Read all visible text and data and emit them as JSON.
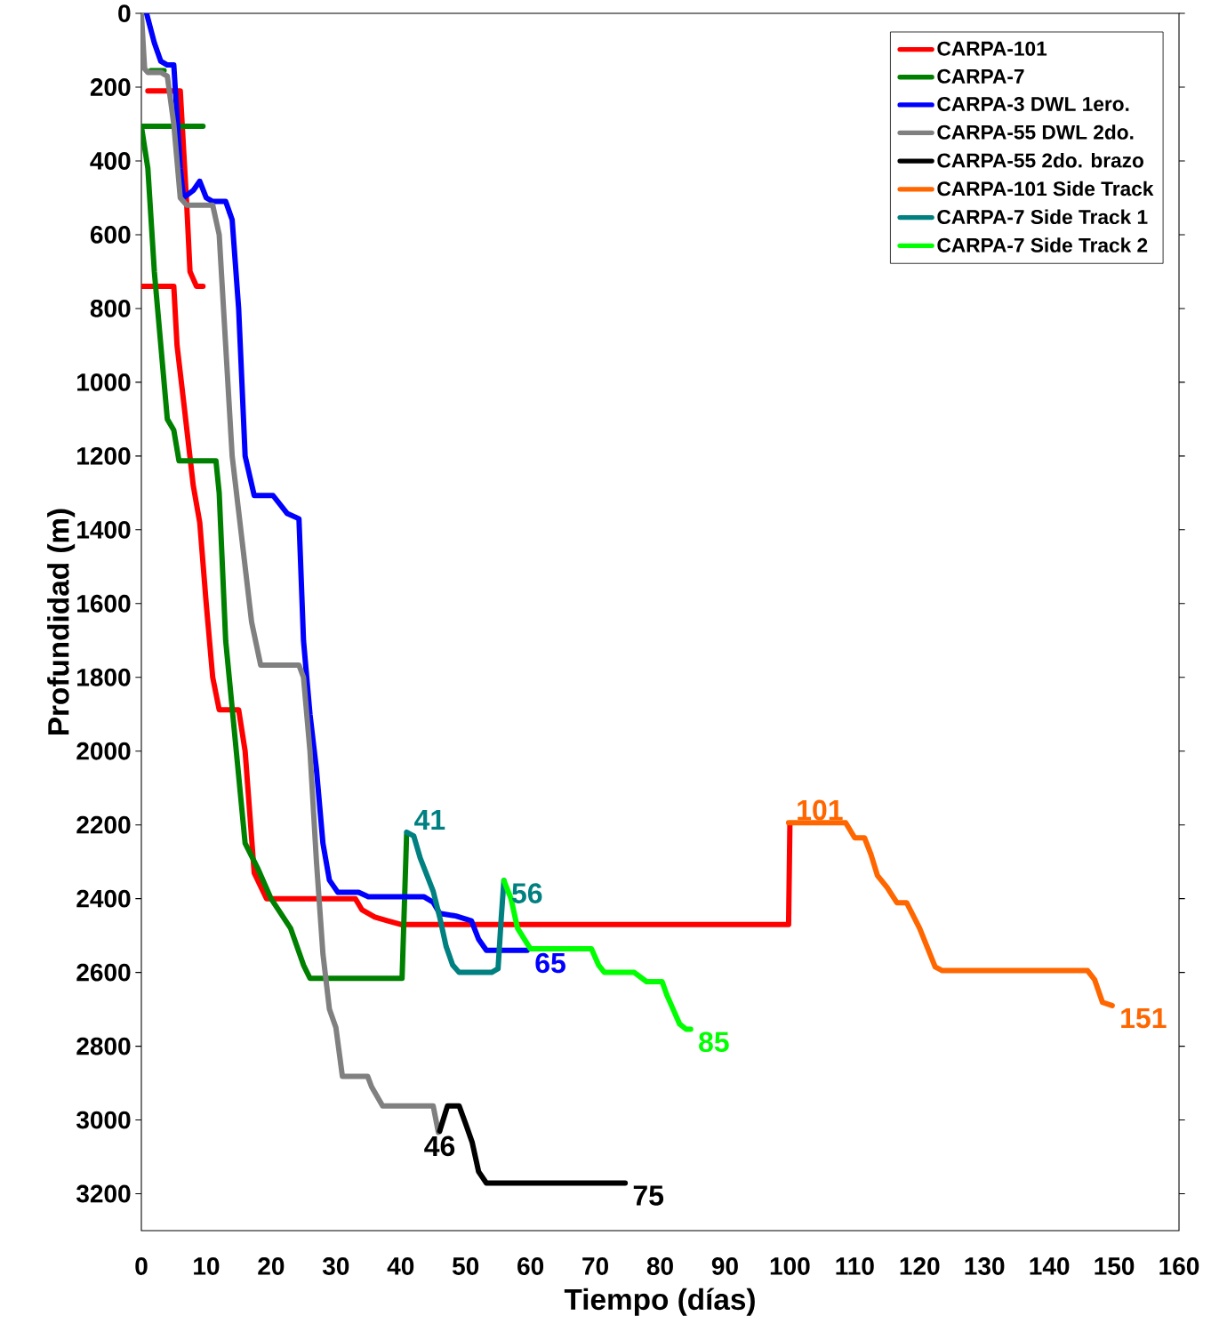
{
  "chart_data": {
    "type": "line",
    "xlabel": "Tiempo (días)",
    "ylabel": "Profundidad (m)",
    "xlim": [
      0,
      160
    ],
    "xticks": [
      0,
      10,
      20,
      30,
      40,
      50,
      60,
      70,
      80,
      90,
      100,
      110,
      120,
      130,
      140,
      150,
      160
    ],
    "ylim": [
      3300,
      0
    ],
    "yticks": [
      0,
      200,
      400,
      600,
      800,
      1000,
      1200,
      1400,
      1600,
      1800,
      2000,
      2200,
      2400,
      2600,
      2800,
      3000,
      3200
    ],
    "annotations": [
      {
        "text": "41",
        "x": 40.9,
        "y": 2220
      },
      {
        "text": "56",
        "x": 55.9,
        "y": 2351
      },
      {
        "text": "65",
        "x": 59.5,
        "y": 2540
      },
      {
        "text": "85",
        "x": 84.7,
        "y": 2754
      },
      {
        "text": "46",
        "x": 46,
        "y": 3030
      },
      {
        "text": "75",
        "x": 74.6,
        "y": 3171
      },
      {
        "text": "101",
        "x": 99.8,
        "y": 2194
      },
      {
        "text": "151",
        "x": 149.7,
        "y": 2690
      }
    ],
    "grid": false,
    "legend": "top right",
    "marker": "none",
    "line_style": "solid",
    "series": [
      {
        "name": "CARPA-101",
        "color": "#ff0000",
        "x": [
          1,
          6,
          7,
          7.5,
          8.5,
          9.5,
          null,
          0,
          5,
          5.5,
          6.5,
          8,
          9,
          10,
          11,
          12,
          15,
          16,
          17.4,
          19.3,
          33,
          34,
          36,
          38,
          40,
          99.8,
          100
        ],
        "values": [
          210,
          210,
          520,
          700,
          740,
          740,
          null,
          740,
          740,
          900,
          1050,
          1280,
          1380,
          1600,
          1800,
          1888,
          1888,
          2000,
          2330,
          2400,
          2400,
          2430,
          2450,
          2460,
          2470,
          2470,
          2200
        ]
      },
      {
        "name": "CARPA-7",
        "color": "#008000",
        "x": [
          1.5,
          3.5,
          null,
          0,
          9.5,
          null,
          0,
          1,
          2,
          3,
          4,
          5,
          5.8,
          11.5,
          12,
          13,
          16,
          18,
          20,
          23,
          25,
          26,
          40.2,
          40.9
        ],
        "values": [
          155,
          155,
          null,
          306,
          306,
          null,
          306,
          420,
          700,
          900,
          1100,
          1130,
          1213,
          1213,
          1300,
          1700,
          2250,
          2320,
          2400,
          2480,
          2580,
          2616,
          2616,
          2226
        ]
      },
      {
        "name": "CARPA-3 DWL 1ero.",
        "color": "#0000ff",
        "x": [
          0.8,
          2,
          3,
          4,
          5,
          6,
          6.5,
          8,
          9,
          10,
          11,
          13,
          14,
          15,
          15.5,
          16,
          17.4,
          20.3,
          22.5,
          24.3,
          25,
          26,
          27,
          28,
          29,
          30.3,
          33.5,
          35,
          43.6,
          45,
          46,
          48.5,
          50.9,
          52,
          53.2,
          59.5
        ],
        "values": [
          0,
          80,
          130,
          140,
          140,
          420,
          500,
          480,
          455,
          500,
          510,
          510,
          560,
          800,
          1000,
          1200,
          1307,
          1307,
          1356,
          1370,
          1700,
          1900,
          2050,
          2250,
          2350,
          2383,
          2383,
          2395,
          2395,
          2410,
          2440,
          2447,
          2460,
          2510,
          2540,
          2540
        ]
      },
      {
        "name": "CARPA-55 DWL 2do.",
        "color": "#808080",
        "x": [
          0,
          0.5,
          1,
          3,
          4,
          5,
          6,
          7,
          11,
          12,
          13,
          14,
          15,
          16,
          17,
          18.4,
          24.3,
          25,
          26,
          27,
          28,
          29,
          30,
          31,
          34.9,
          35.5,
          37.2,
          45,
          45.8
        ],
        "values": [
          0,
          150,
          160,
          160,
          170,
          300,
          500,
          520,
          520,
          600,
          900,
          1200,
          1350,
          1500,
          1650,
          1767,
          1767,
          1800,
          2000,
          2300,
          2550,
          2700,
          2750,
          2882,
          2882,
          2910,
          2962,
          2962,
          3034
        ]
      },
      {
        "name": "CARPA-55 2do. brazo",
        "color": "#000000",
        "x": [
          46,
          47.2,
          49,
          50,
          51,
          52,
          53.2,
          74.6
        ],
        "values": [
          3030,
          2962,
          2962,
          3010,
          3060,
          3140,
          3171,
          3171
        ]
      },
      {
        "name": "CARPA-101 Side Track",
        "color": "#ff6600",
        "x": [
          99.8,
          108.6,
          110,
          111.5,
          112.5,
          113.5,
          115,
          116.5,
          118,
          120,
          122.4,
          123.5,
          145.9,
          147,
          148.2,
          149.7
        ],
        "values": [
          2194,
          2194,
          2235,
          2235,
          2280,
          2337,
          2370,
          2411,
          2411,
          2480,
          2585,
          2595,
          2595,
          2620,
          2681,
          2690
        ]
      },
      {
        "name": "CARPA-7 Side Track 1",
        "color": "#008080",
        "x": [
          40.9,
          42,
          43,
          45,
          46,
          47,
          48,
          49,
          54,
          55,
          55.5,
          55.9
        ],
        "values": [
          2220,
          2230,
          2290,
          2380,
          2450,
          2530,
          2580,
          2600,
          2600,
          2590,
          2450,
          2351
        ]
      },
      {
        "name": "CARPA-7 Side Track 2",
        "color": "#00ff00",
        "x": [
          55.9,
          57,
          58,
          60,
          69.4,
          70.5,
          71.4,
          76,
          77.9,
          80.3,
          81,
          82,
          83,
          84,
          84.7
        ],
        "values": [
          2351,
          2400,
          2480,
          2536,
          2536,
          2580,
          2600,
          2600,
          2625,
          2625,
          2660,
          2700,
          2740,
          2754,
          2754
        ]
      }
    ]
  }
}
